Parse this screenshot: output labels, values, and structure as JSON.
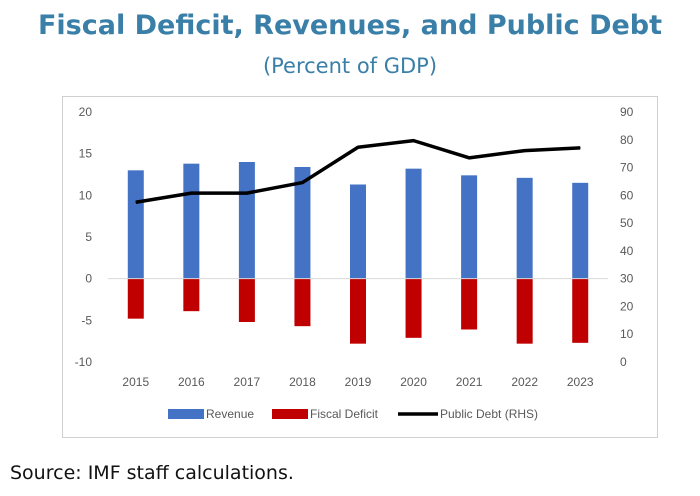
{
  "title": "Fiscal Deficit, Revenues, and Public Debt",
  "subtitle": "(Percent of GDP)",
  "source": "Source: IMF staff calculations.",
  "chart_data": {
    "type": "bar",
    "categories": [
      "2015",
      "2016",
      "2017",
      "2018",
      "2019",
      "2020",
      "2021",
      "2022",
      "2023"
    ],
    "series": [
      {
        "name": "Revenue",
        "type": "bar",
        "axis": "left",
        "color": "#4472c4",
        "values": [
          13.0,
          13.8,
          14.0,
          13.4,
          11.3,
          13.2,
          12.4,
          12.1,
          11.5
        ]
      },
      {
        "name": "Fiscal Deficit",
        "type": "bar",
        "axis": "left",
        "color": "#c00000",
        "values": [
          -4.8,
          -3.9,
          -5.2,
          -5.7,
          -7.8,
          -7.1,
          -6.1,
          -7.8,
          -7.7
        ]
      },
      {
        "name": "Public Debt (RHS)",
        "type": "line",
        "axis": "right",
        "color": "#000000",
        "values": [
          57.5,
          60.8,
          60.8,
          64.6,
          77.3,
          79.7,
          73.5,
          76.1,
          77.1
        ]
      }
    ],
    "ylim": [
      -10,
      20
    ],
    "yticks": [
      "20",
      "15",
      "10",
      "5",
      "0",
      "-5",
      "-10"
    ],
    "y2lim": [
      0,
      90
    ],
    "y2ticks": [
      "90",
      "80",
      "70",
      "60",
      "50",
      "40",
      "30",
      "20",
      "10",
      "0"
    ],
    "grid": false,
    "legend": "bottom"
  }
}
